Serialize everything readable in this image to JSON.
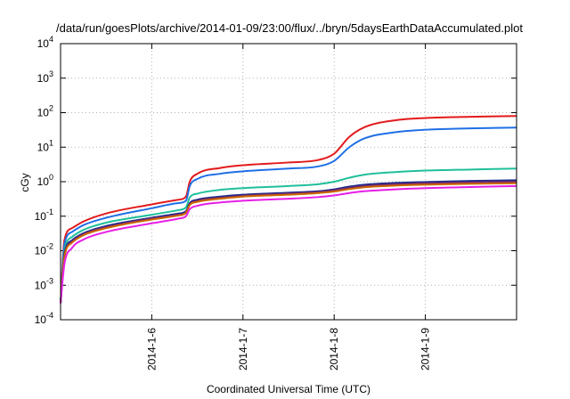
{
  "chart_data": {
    "type": "line",
    "title": "/data/run/goesPlots/archive/2014-01-09/23:00/flux/../bryn/5daysEarthDataAccumulated.plot",
    "xlabel": "Coordinated Universal Time (UTC)",
    "ylabel": "cGy",
    "yscale": "log",
    "ylim": [
      0.0001,
      10000
    ],
    "xlim": [
      "2014-01-05T00:00",
      "2014-01-10T00:00"
    ],
    "grid": true,
    "legend": "none",
    "x_ticks": [
      "2014-1-6",
      "2014-1-7",
      "2014-1-8",
      "2014-1-9"
    ],
    "y_ticks": [
      {
        "base": "10",
        "exp": "-4",
        "value": 0.0001
      },
      {
        "base": "10",
        "exp": "-3",
        "value": 0.001
      },
      {
        "base": "10",
        "exp": "-2",
        "value": 0.01
      },
      {
        "base": "10",
        "exp": "-1",
        "value": 0.1
      },
      {
        "base": "10",
        "exp": "0",
        "value": 1
      },
      {
        "base": "10",
        "exp": "1",
        "value": 10
      },
      {
        "base": "10",
        "exp": "2",
        "value": 100
      },
      {
        "base": "10",
        "exp": "3",
        "value": 1000
      },
      {
        "base": "10",
        "exp": "4",
        "value": 10000
      }
    ],
    "series": [
      {
        "color": "#e31a1c",
        "values": [
          {
            "x": "2014-01-05T00:00",
            "y": 0.0003
          },
          {
            "x": "2014-01-05T01:00",
            "y": 0.02
          },
          {
            "x": "2014-01-05T03:00",
            "y": 0.045
          },
          {
            "x": "2014-01-05T06:00",
            "y": 0.07
          },
          {
            "x": "2014-01-05T12:00",
            "y": 0.12
          },
          {
            "x": "2014-01-06T00:00",
            "y": 0.22
          },
          {
            "x": "2014-01-06T07:00",
            "y": 0.3
          },
          {
            "x": "2014-01-06T09:00",
            "y": 0.37
          },
          {
            "x": "2014-01-06T10:00",
            "y": 1.0
          },
          {
            "x": "2014-01-06T12:00",
            "y": 1.7
          },
          {
            "x": "2014-01-06T18:00",
            "y": 2.5
          },
          {
            "x": "2014-01-07T00:00",
            "y": 3.0
          },
          {
            "x": "2014-01-07T12:00",
            "y": 3.6
          },
          {
            "x": "2014-01-07T20:00",
            "y": 4.3
          },
          {
            "x": "2014-01-08T00:00",
            "y": 6.5
          },
          {
            "x": "2014-01-08T04:00",
            "y": 20
          },
          {
            "x": "2014-01-08T08:00",
            "y": 38
          },
          {
            "x": "2014-01-08T16:00",
            "y": 60
          },
          {
            "x": "2014-01-09T00:00",
            "y": 70
          },
          {
            "x": "2014-01-09T12:00",
            "y": 76
          },
          {
            "x": "2014-01-10T00:00",
            "y": 80
          }
        ]
      },
      {
        "color": "#1f6fe6",
        "values": [
          {
            "x": "2014-01-05T00:00",
            "y": 0.0003
          },
          {
            "x": "2014-01-05T01:00",
            "y": 0.015
          },
          {
            "x": "2014-01-05T03:00",
            "y": 0.035
          },
          {
            "x": "2014-01-05T06:00",
            "y": 0.055
          },
          {
            "x": "2014-01-05T12:00",
            "y": 0.09
          },
          {
            "x": "2014-01-06T00:00",
            "y": 0.17
          },
          {
            "x": "2014-01-06T07:00",
            "y": 0.24
          },
          {
            "x": "2014-01-06T09:00",
            "y": 0.28
          },
          {
            "x": "2014-01-06T10:00",
            "y": 0.75
          },
          {
            "x": "2014-01-06T12:00",
            "y": 1.2
          },
          {
            "x": "2014-01-06T18:00",
            "y": 1.7
          },
          {
            "x": "2014-01-07T00:00",
            "y": 2.0
          },
          {
            "x": "2014-01-07T12:00",
            "y": 2.4
          },
          {
            "x": "2014-01-07T20:00",
            "y": 2.8
          },
          {
            "x": "2014-01-08T00:00",
            "y": 4.0
          },
          {
            "x": "2014-01-08T04:00",
            "y": 10
          },
          {
            "x": "2014-01-08T08:00",
            "y": 18
          },
          {
            "x": "2014-01-08T16:00",
            "y": 27
          },
          {
            "x": "2014-01-09T00:00",
            "y": 32
          },
          {
            "x": "2014-01-09T12:00",
            "y": 35
          },
          {
            "x": "2014-01-10T00:00",
            "y": 37
          }
        ]
      },
      {
        "color": "#1fbf9a",
        "values": [
          {
            "x": "2014-01-05T00:00",
            "y": 0.0003
          },
          {
            "x": "2014-01-05T01:00",
            "y": 0.01
          },
          {
            "x": "2014-01-05T03:00",
            "y": 0.025
          },
          {
            "x": "2014-01-05T06:00",
            "y": 0.04
          },
          {
            "x": "2014-01-05T12:00",
            "y": 0.065
          },
          {
            "x": "2014-01-06T00:00",
            "y": 0.11
          },
          {
            "x": "2014-01-06T07:00",
            "y": 0.15
          },
          {
            "x": "2014-01-06T09:00",
            "y": 0.18
          },
          {
            "x": "2014-01-06T10:00",
            "y": 0.35
          },
          {
            "x": "2014-01-06T12:00",
            "y": 0.45
          },
          {
            "x": "2014-01-06T18:00",
            "y": 0.58
          },
          {
            "x": "2014-01-07T00:00",
            "y": 0.65
          },
          {
            "x": "2014-01-07T12:00",
            "y": 0.75
          },
          {
            "x": "2014-01-07T20:00",
            "y": 0.85
          },
          {
            "x": "2014-01-08T00:00",
            "y": 1.0
          },
          {
            "x": "2014-01-08T04:00",
            "y": 1.3
          },
          {
            "x": "2014-01-08T08:00",
            "y": 1.6
          },
          {
            "x": "2014-01-08T16:00",
            "y": 1.9
          },
          {
            "x": "2014-01-09T00:00",
            "y": 2.1
          },
          {
            "x": "2014-01-09T12:00",
            "y": 2.25
          },
          {
            "x": "2014-01-10T00:00",
            "y": 2.4
          }
        ]
      },
      {
        "color": "#1a2a8c",
        "values": [
          {
            "x": "2014-01-05T00:00",
            "y": 0.0003
          },
          {
            "x": "2014-01-05T01:00",
            "y": 0.008
          },
          {
            "x": "2014-01-05T03:00",
            "y": 0.02
          },
          {
            "x": "2014-01-05T06:00",
            "y": 0.032
          },
          {
            "x": "2014-01-05T12:00",
            "y": 0.052
          },
          {
            "x": "2014-01-06T00:00",
            "y": 0.09
          },
          {
            "x": "2014-01-06T07:00",
            "y": 0.12
          },
          {
            "x": "2014-01-06T09:00",
            "y": 0.14
          },
          {
            "x": "2014-01-06T10:00",
            "y": 0.24
          },
          {
            "x": "2014-01-06T12:00",
            "y": 0.3
          },
          {
            "x": "2014-01-06T18:00",
            "y": 0.37
          },
          {
            "x": "2014-01-07T00:00",
            "y": 0.42
          },
          {
            "x": "2014-01-07T12:00",
            "y": 0.48
          },
          {
            "x": "2014-01-07T20:00",
            "y": 0.53
          },
          {
            "x": "2014-01-08T00:00",
            "y": 0.6
          },
          {
            "x": "2014-01-08T04:00",
            "y": 0.72
          },
          {
            "x": "2014-01-08T08:00",
            "y": 0.82
          },
          {
            "x": "2014-01-08T16:00",
            "y": 0.92
          },
          {
            "x": "2014-01-09T00:00",
            "y": 0.98
          },
          {
            "x": "2014-01-09T12:00",
            "y": 1.05
          },
          {
            "x": "2014-01-10T00:00",
            "y": 1.1
          }
        ]
      },
      {
        "color": "#7a2a6a",
        "values": [
          {
            "x": "2014-01-05T00:00",
            "y": 0.0003
          },
          {
            "x": "2014-01-05T01:00",
            "y": 0.007
          },
          {
            "x": "2014-01-05T03:00",
            "y": 0.018
          },
          {
            "x": "2014-01-05T06:00",
            "y": 0.03
          },
          {
            "x": "2014-01-05T12:00",
            "y": 0.048
          },
          {
            "x": "2014-01-06T00:00",
            "y": 0.085
          },
          {
            "x": "2014-01-06T07:00",
            "y": 0.11
          },
          {
            "x": "2014-01-06T09:00",
            "y": 0.13
          },
          {
            "x": "2014-01-06T10:00",
            "y": 0.22
          },
          {
            "x": "2014-01-06T12:00",
            "y": 0.28
          },
          {
            "x": "2014-01-06T18:00",
            "y": 0.34
          },
          {
            "x": "2014-01-07T00:00",
            "y": 0.39
          },
          {
            "x": "2014-01-07T12:00",
            "y": 0.45
          },
          {
            "x": "2014-01-07T20:00",
            "y": 0.5
          },
          {
            "x": "2014-01-08T00:00",
            "y": 0.56
          },
          {
            "x": "2014-01-08T04:00",
            "y": 0.66
          },
          {
            "x": "2014-01-08T08:00",
            "y": 0.75
          },
          {
            "x": "2014-01-08T16:00",
            "y": 0.84
          },
          {
            "x": "2014-01-09T00:00",
            "y": 0.9
          },
          {
            "x": "2014-01-09T12:00",
            "y": 0.96
          },
          {
            "x": "2014-01-10T00:00",
            "y": 1.0
          }
        ]
      },
      {
        "color": "#cc6600",
        "values": [
          {
            "x": "2014-01-05T00:00",
            "y": 0.0003
          },
          {
            "x": "2014-01-05T01:00",
            "y": 0.0065
          },
          {
            "x": "2014-01-05T03:00",
            "y": 0.017
          },
          {
            "x": "2014-01-05T06:00",
            "y": 0.028
          },
          {
            "x": "2014-01-05T12:00",
            "y": 0.045
          },
          {
            "x": "2014-01-06T00:00",
            "y": 0.08
          },
          {
            "x": "2014-01-06T07:00",
            "y": 0.105
          },
          {
            "x": "2014-01-06T09:00",
            "y": 0.125
          },
          {
            "x": "2014-01-06T10:00",
            "y": 0.21
          },
          {
            "x": "2014-01-06T12:00",
            "y": 0.26
          },
          {
            "x": "2014-01-06T18:00",
            "y": 0.32
          },
          {
            "x": "2014-01-07T00:00",
            "y": 0.37
          },
          {
            "x": "2014-01-07T12:00",
            "y": 0.42
          },
          {
            "x": "2014-01-07T20:00",
            "y": 0.47
          },
          {
            "x": "2014-01-08T00:00",
            "y": 0.52
          },
          {
            "x": "2014-01-08T04:00",
            "y": 0.61
          },
          {
            "x": "2014-01-08T08:00",
            "y": 0.69
          },
          {
            "x": "2014-01-08T16:00",
            "y": 0.77
          },
          {
            "x": "2014-01-09T00:00",
            "y": 0.82
          },
          {
            "x": "2014-01-09T12:00",
            "y": 0.87
          },
          {
            "x": "2014-01-10T00:00",
            "y": 0.9
          }
        ]
      },
      {
        "color": "#e61ee6",
        "values": [
          {
            "x": "2014-01-05T00:00",
            "y": 0.0003
          },
          {
            "x": "2014-01-05T01:00",
            "y": 0.004
          },
          {
            "x": "2014-01-05T03:00",
            "y": 0.012
          },
          {
            "x": "2014-01-05T06:00",
            "y": 0.021
          },
          {
            "x": "2014-01-05T12:00",
            "y": 0.035
          },
          {
            "x": "2014-01-06T00:00",
            "y": 0.062
          },
          {
            "x": "2014-01-06T07:00",
            "y": 0.085
          },
          {
            "x": "2014-01-06T09:00",
            "y": 0.1
          },
          {
            "x": "2014-01-06T10:00",
            "y": 0.16
          },
          {
            "x": "2014-01-06T12:00",
            "y": 0.2
          },
          {
            "x": "2014-01-06T18:00",
            "y": 0.25
          },
          {
            "x": "2014-01-07T00:00",
            "y": 0.28
          },
          {
            "x": "2014-01-07T12:00",
            "y": 0.32
          },
          {
            "x": "2014-01-07T20:00",
            "y": 0.36
          },
          {
            "x": "2014-01-08T00:00",
            "y": 0.4
          },
          {
            "x": "2014-01-08T04:00",
            "y": 0.47
          },
          {
            "x": "2014-01-08T08:00",
            "y": 0.53
          },
          {
            "x": "2014-01-08T16:00",
            "y": 0.6
          },
          {
            "x": "2014-01-09T00:00",
            "y": 0.65
          },
          {
            "x": "2014-01-09T12:00",
            "y": 0.7
          },
          {
            "x": "2014-01-10T00:00",
            "y": 0.75
          }
        ]
      }
    ]
  }
}
